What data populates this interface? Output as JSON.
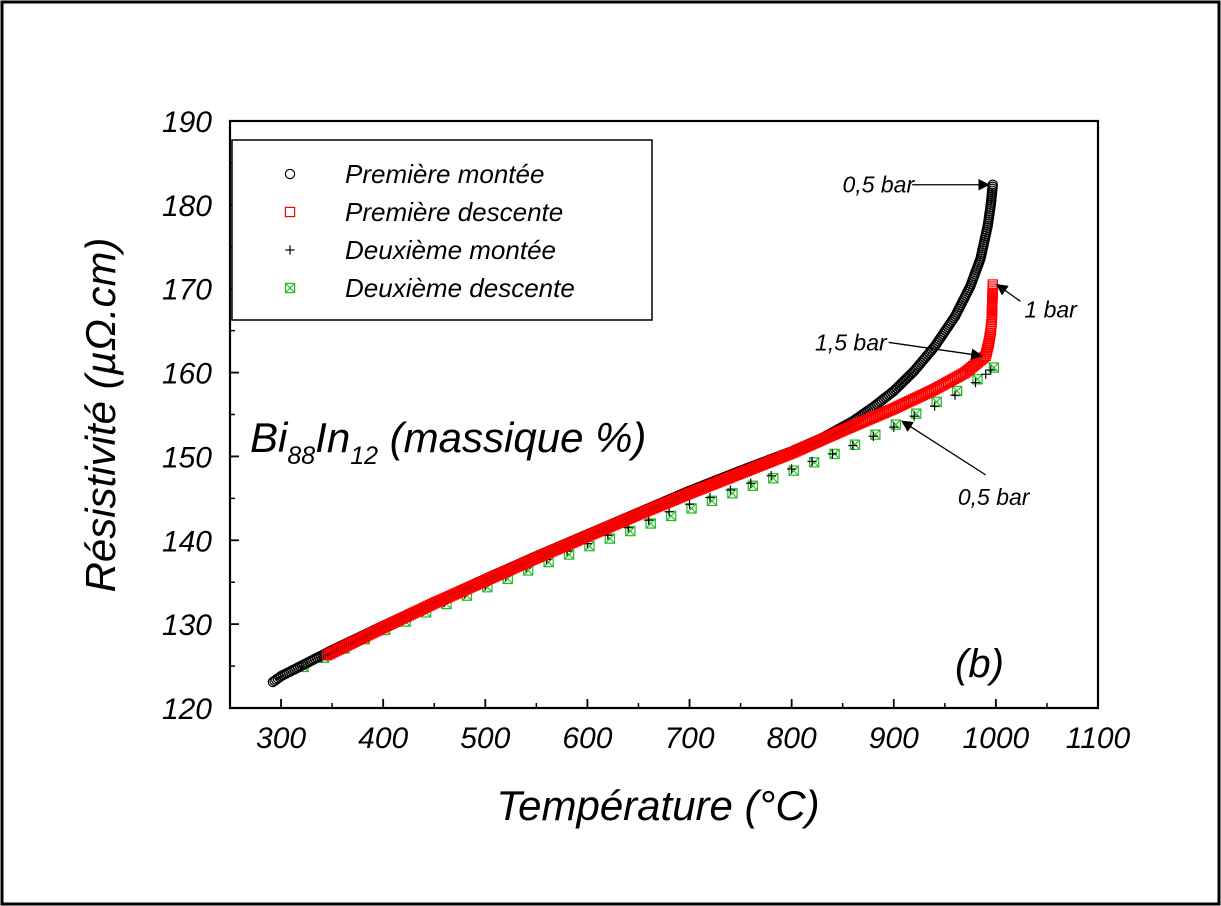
{
  "chart_data": {
    "type": "scatter",
    "xlabel": "Température (°C)",
    "ylabel": "Résistivité (µΩ.cm)",
    "xlim": [
      250,
      1100
    ],
    "ylim": [
      120,
      190
    ],
    "xticks": [
      "300",
      "400",
      "500",
      "600",
      "700",
      "800",
      "900",
      "1000",
      "1100"
    ],
    "yticks": [
      "120",
      "130",
      "140",
      "150",
      "160",
      "170",
      "180",
      "190"
    ],
    "inset_title": {
      "base1": "Bi",
      "sub1": "88",
      "base2": "In",
      "sub2": "12",
      "rest": " (massique %)"
    },
    "panel_label": "(b)",
    "legend": {
      "position": "top-left"
    },
    "series": [
      {
        "name": "Première montée",
        "marker": "circle",
        "color": "#000000",
        "points": [
          [
            292,
            123.1
          ],
          [
            300,
            123.8
          ],
          [
            350,
            126.9
          ],
          [
            400,
            129.8
          ],
          [
            450,
            132.6
          ],
          [
            500,
            135.4
          ],
          [
            550,
            138.1
          ],
          [
            600,
            140.7
          ],
          [
            650,
            143.3
          ],
          [
            700,
            145.9
          ],
          [
            750,
            148.3
          ],
          [
            800,
            150.6
          ],
          [
            830,
            152.2
          ],
          [
            860,
            154.2
          ],
          [
            880,
            155.9
          ],
          [
            900,
            157.8
          ],
          [
            920,
            160.2
          ],
          [
            940,
            163.1
          ],
          [
            960,
            166.7
          ],
          [
            975,
            170.3
          ],
          [
            985,
            173.6
          ],
          [
            992,
            177.5
          ],
          [
            995,
            180.0
          ],
          [
            997,
            182.4
          ]
        ]
      },
      {
        "name": "Première descente",
        "marker": "square",
        "color": "#ff0000",
        "points": [
          [
            345,
            126.3
          ],
          [
            400,
            129.6
          ],
          [
            450,
            132.5
          ],
          [
            500,
            135.2
          ],
          [
            550,
            137.9
          ],
          [
            600,
            140.5
          ],
          [
            650,
            143.1
          ],
          [
            700,
            145.6
          ],
          [
            750,
            148.0
          ],
          [
            800,
            150.4
          ],
          [
            850,
            153.1
          ],
          [
            900,
            155.7
          ],
          [
            940,
            158.0
          ],
          [
            970,
            160.0
          ],
          [
            990,
            162.0
          ],
          [
            993,
            163.5
          ],
          [
            995,
            165.0
          ],
          [
            996,
            166.3
          ],
          [
            997,
            170.5
          ]
        ]
      },
      {
        "name": "Deuxième montée",
        "marker": "plus",
        "color": "#000000",
        "points": [
          [
            320,
            124.9
          ],
          [
            340,
            126.0
          ],
          [
            360,
            127.2
          ],
          [
            380,
            128.3
          ],
          [
            400,
            129.4
          ],
          [
            420,
            130.5
          ],
          [
            440,
            131.6
          ],
          [
            460,
            132.6
          ],
          [
            480,
            133.6
          ],
          [
            500,
            134.6
          ],
          [
            520,
            135.7
          ],
          [
            540,
            136.7
          ],
          [
            560,
            137.7
          ],
          [
            580,
            138.7
          ],
          [
            600,
            139.6
          ],
          [
            620,
            140.6
          ],
          [
            640,
            141.5
          ],
          [
            660,
            142.4
          ],
          [
            680,
            143.4
          ],
          [
            700,
            144.3
          ],
          [
            720,
            145.1
          ],
          [
            740,
            146.0
          ],
          [
            760,
            146.8
          ],
          [
            780,
            147.7
          ],
          [
            800,
            148.5
          ],
          [
            820,
            149.4
          ],
          [
            840,
            150.3
          ],
          [
            860,
            151.3
          ],
          [
            880,
            152.4
          ],
          [
            900,
            153.5
          ],
          [
            920,
            154.8
          ],
          [
            940,
            156.0
          ],
          [
            960,
            157.3
          ],
          [
            980,
            158.8
          ],
          [
            990,
            159.8
          ],
          [
            995,
            160.3
          ]
        ]
      },
      {
        "name": "Deuxième descente",
        "marker": "box-x",
        "color": "#22bb22",
        "points": [
          [
            322,
            124.9
          ],
          [
            342,
            126.0
          ],
          [
            362,
            127.1
          ],
          [
            382,
            128.2
          ],
          [
            402,
            129.3
          ],
          [
            422,
            130.3
          ],
          [
            442,
            131.4
          ],
          [
            462,
            132.4
          ],
          [
            482,
            133.4
          ],
          [
            502,
            134.4
          ],
          [
            522,
            135.4
          ],
          [
            542,
            136.4
          ],
          [
            562,
            137.4
          ],
          [
            582,
            138.3
          ],
          [
            602,
            139.3
          ],
          [
            622,
            140.2
          ],
          [
            642,
            141.1
          ],
          [
            662,
            142.0
          ],
          [
            682,
            142.9
          ],
          [
            702,
            143.8
          ],
          [
            722,
            144.7
          ],
          [
            742,
            145.6
          ],
          [
            762,
            146.5
          ],
          [
            782,
            147.4
          ],
          [
            802,
            148.3
          ],
          [
            822,
            149.3
          ],
          [
            842,
            150.3
          ],
          [
            862,
            151.4
          ],
          [
            882,
            152.6
          ],
          [
            902,
            153.8
          ],
          [
            922,
            155.1
          ],
          [
            942,
            156.5
          ],
          [
            962,
            157.8
          ],
          [
            982,
            159.2
          ],
          [
            998,
            160.6
          ]
        ]
      }
    ],
    "annotations": [
      {
        "text": "0,5 bar",
        "at": [
          997,
          182.4
        ],
        "from": [
          918,
          182.4
        ]
      },
      {
        "text": "1 bar",
        "at": [
          997,
          170.5
        ],
        "from": [
          1024,
          168.5
        ]
      },
      {
        "text": "1,5 bar",
        "at": [
          990,
          162.0
        ],
        "from": [
          895,
          163.6
        ]
      },
      {
        "text": "0,5 bar",
        "at": [
          912,
          154.2
        ],
        "from": [
          990,
          147.8
        ]
      }
    ]
  }
}
